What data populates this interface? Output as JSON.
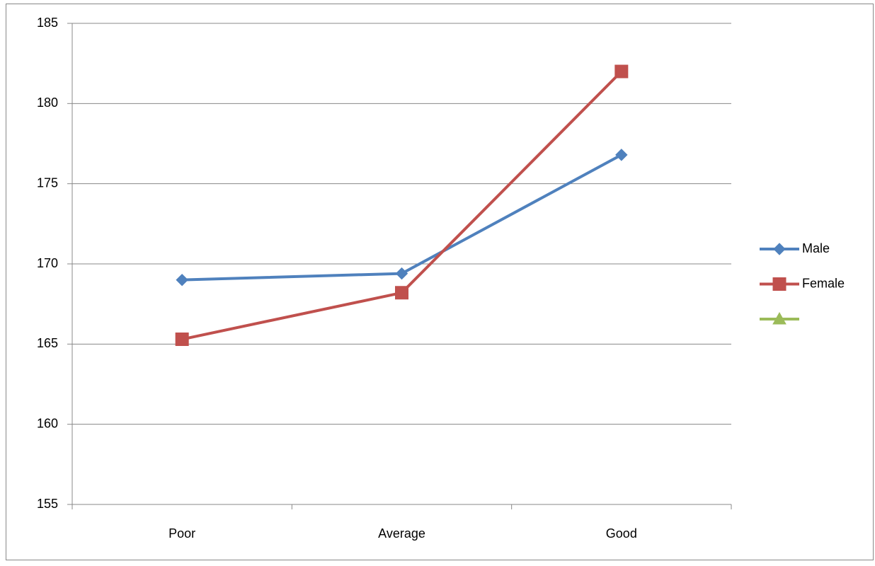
{
  "chart_data": {
    "type": "line",
    "categories": [
      "Poor",
      "Average",
      "Good"
    ],
    "series": [
      {
        "name": "Male",
        "color": "#4f81bd",
        "marker": "diamond",
        "values": [
          169,
          169.4,
          176.8
        ]
      },
      {
        "name": "Female",
        "color": "#c0504d",
        "marker": "square",
        "values": [
          165.3,
          168.2,
          182
        ]
      },
      {
        "color": "#9bbb59",
        "marker": "triangle",
        "values": [
          null,
          null,
          null
        ]
      }
    ],
    "ylim": [
      155,
      185
    ],
    "yticks": [
      155,
      160,
      165,
      170,
      175,
      180,
      185
    ],
    "grid": true,
    "legend": "right"
  }
}
